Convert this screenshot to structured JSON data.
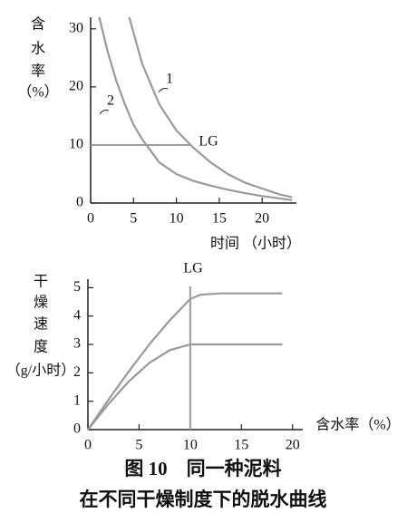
{
  "chart_data": [
    {
      "type": "line",
      "ylabel": [
        "含",
        "水",
        "率",
        "（%）"
      ],
      "xlabel": "时间 （小时）",
      "xlim": [
        0,
        24
      ],
      "ylim": [
        0,
        32
      ],
      "xticks": [
        0,
        5,
        10,
        15,
        20
      ],
      "yticks": [
        0,
        10,
        20,
        30
      ],
      "series": [
        {
          "name": "1",
          "color": "#9a9a9a",
          "x": [
            4.5,
            6,
            8,
            10,
            12,
            14,
            16,
            18,
            20,
            22,
            23.5
          ],
          "values": [
            32,
            24,
            17,
            12.5,
            9.5,
            7,
            5,
            3.5,
            2.5,
            1.5,
            1
          ]
        },
        {
          "name": "2",
          "color": "#9a9a9a",
          "x": [
            1,
            2,
            3,
            4,
            5,
            6,
            7,
            8,
            10,
            12,
            14,
            16,
            18,
            20,
            23.5
          ],
          "values": [
            32,
            26,
            21,
            17,
            13.5,
            11,
            9,
            7,
            5,
            3.8,
            3,
            2.3,
            1.7,
            1.2,
            0.5
          ]
        }
      ],
      "hline": {
        "y": 10,
        "x": [
          0,
          11.6
        ],
        "label": "LG"
      }
    },
    {
      "type": "line",
      "ylabel": [
        "干",
        "燥",
        "速",
        "度",
        "（g/小时）"
      ],
      "xlabel": "含水率（%）",
      "xlim": [
        0,
        21
      ],
      "ylim": [
        0,
        5.3
      ],
      "xticks": [
        0,
        5,
        10,
        15,
        20
      ],
      "yticks": [
        0,
        1,
        2,
        3,
        4,
        5
      ],
      "series": [
        {
          "name": null,
          "color": "#9a9a9a",
          "x": [
            0,
            2,
            4,
            6,
            8,
            10,
            11,
            13,
            19
          ],
          "values": [
            0,
            1.05,
            2.05,
            3.0,
            3.85,
            4.6,
            4.75,
            4.8,
            4.8
          ]
        },
        {
          "name": null,
          "color": "#9a9a9a",
          "x": [
            0,
            2,
            4,
            6,
            8,
            10,
            12,
            19
          ],
          "values": [
            0,
            0.9,
            1.7,
            2.35,
            2.8,
            3.0,
            3.0,
            3.0
          ]
        }
      ],
      "vline": {
        "x": 10,
        "label": "LG"
      }
    }
  ],
  "caption": [
    "图 10　同一种泥料",
    "在不同干燥制度下的脱水曲线"
  ]
}
